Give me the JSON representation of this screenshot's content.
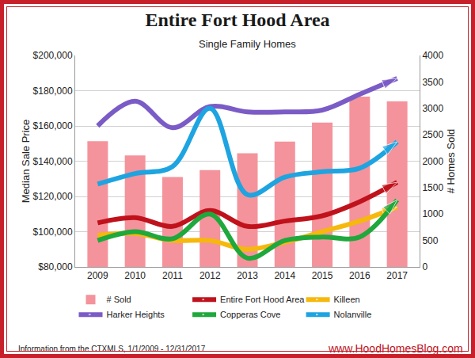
{
  "chart_data": {
    "type": "line",
    "title": "Entire Fort Hood Area",
    "subtitle": "Single Family Homes",
    "y_label": "Median Sale Price",
    "y2_label": "# Homes Sold",
    "annotations": [
      "Information from the CTXMLS, 1/1/2009 - 12/31/2017",
      "www.HoodHomesBlog.com"
    ],
    "categories": [
      "2009",
      "2010",
      "2011",
      "2012",
      "2013",
      "2014",
      "2015",
      "2016",
      "2017"
    ],
    "series": [
      {
        "name": "# Sold",
        "type": "bar",
        "axis": "y2",
        "color": "#f4939b",
        "values": [
          2380,
          2110,
          1700,
          1830,
          2150,
          2370,
          2730,
          3220,
          3130
        ]
      },
      {
        "name": "Entire Fort Hood Area",
        "type": "line",
        "color": "#c0121c",
        "marker": "arrow",
        "line_style": "solid",
        "values": [
          105000,
          108000,
          103000,
          112000,
          103000,
          106000,
          109000,
          117000,
          128000
        ]
      },
      {
        "name": "Killeen",
        "type": "line",
        "color": "#f6b80c",
        "marker": "arrow",
        "line_style": "solid",
        "values": [
          98000,
          99000,
          95000,
          95000,
          90000,
          94000,
          100000,
          106000,
          114000
        ]
      },
      {
        "name": "Harker Heights",
        "type": "line",
        "color": "#7b5bc6",
        "marker": "arrow",
        "line_style": "solid",
        "values": [
          160000,
          174000,
          159000,
          171000,
          168000,
          168000,
          169000,
          178000,
          187000
        ]
      },
      {
        "name": "Copperas Cove",
        "type": "line",
        "color": "#1fa83c",
        "marker": "arrow",
        "line_style": "solid",
        "values": [
          95000,
          100000,
          96000,
          110000,
          85000,
          95000,
          97000,
          97000,
          118000
        ]
      },
      {
        "name": "Nolanville",
        "type": "line",
        "color": "#1ea4e0",
        "marker": "arrow",
        "line_style": "solid",
        "values": [
          127000,
          133000,
          137000,
          170000,
          121000,
          131000,
          134000,
          136000,
          151000
        ]
      }
    ],
    "ylim": [
      80000,
      200000
    ],
    "yticks": [
      {
        "value": 80000,
        "label": "$80,000"
      },
      {
        "value": 100000,
        "label": "$100,000"
      },
      {
        "value": 120000,
        "label": "$120,000"
      },
      {
        "value": 140000,
        "label": "$140,000"
      },
      {
        "value": 160000,
        "label": "$160,000"
      },
      {
        "value": 180000,
        "label": "$180,000"
      },
      {
        "value": 200000,
        "label": "$200,000"
      }
    ],
    "y2lim": [
      0,
      4000
    ],
    "y2ticks": [
      0,
      500,
      1000,
      1500,
      2000,
      2500,
      3000,
      3500,
      4000
    ],
    "grid": true,
    "legend": "bottom"
  }
}
